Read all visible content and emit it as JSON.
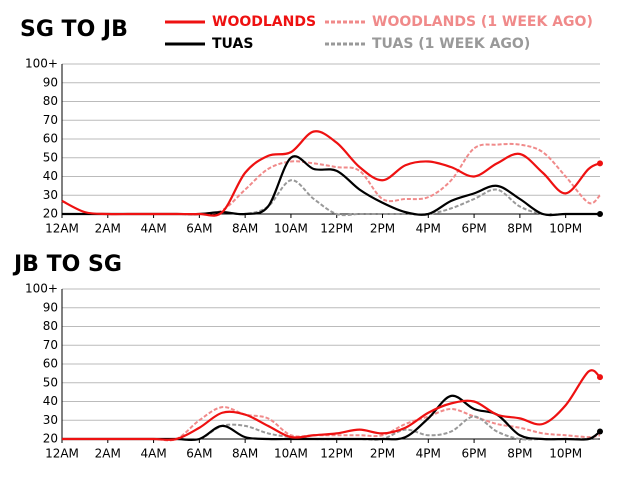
{
  "chart_data": [
    {
      "type": "line",
      "title": "SG TO JB",
      "x": [
        0,
        1,
        2,
        3,
        4,
        5,
        6,
        7,
        8,
        9,
        10,
        11,
        12,
        13,
        14,
        15,
        16,
        17,
        18,
        19,
        20,
        21,
        22,
        23,
        23.5
      ],
      "series": [
        {
          "name": "WOODLANDS",
          "color": "#ee1111",
          "dash": false,
          "values": [
            27,
            21,
            20,
            20,
            20,
            20,
            20,
            21,
            42,
            51,
            53,
            64,
            58,
            45,
            38,
            46,
            48,
            45,
            40,
            47,
            52,
            42,
            31,
            44,
            47
          ]
        },
        {
          "name": "WOODLANDS (1 WEEK AGO)",
          "color": "#f08a8a",
          "dash": true,
          "values": [
            20,
            20,
            20,
            20,
            20,
            20,
            20,
            22,
            33,
            44,
            48,
            47,
            45,
            43,
            28,
            28,
            29,
            38,
            55,
            57,
            57,
            53,
            40,
            26,
            30
          ]
        },
        {
          "name": "TUAS",
          "color": "#000000",
          "dash": false,
          "values": [
            20,
            20,
            20,
            20,
            20,
            20,
            20,
            21,
            20,
            24,
            50,
            44,
            43,
            33,
            26,
            21,
            20,
            27,
            31,
            35,
            28,
            20,
            20,
            20,
            20
          ]
        },
        {
          "name": "TUAS (1 WEEK AGO)",
          "color": "#999999",
          "dash": true,
          "values": [
            20,
            20,
            20,
            20,
            20,
            20,
            20,
            21,
            20,
            24,
            38,
            28,
            20,
            20,
            20,
            20,
            20,
            23,
            28,
            33,
            24,
            20,
            20,
            20,
            20
          ]
        }
      ],
      "xlim": [
        0,
        23.5
      ],
      "ylim": [
        20,
        100
      ],
      "xticks": [
        {
          "value": 0,
          "label": "12AM"
        },
        {
          "value": 2,
          "label": "2AM"
        },
        {
          "value": 4,
          "label": "4AM"
        },
        {
          "value": 6,
          "label": "6AM"
        },
        {
          "value": 8,
          "label": "8AM"
        },
        {
          "value": 10,
          "label": "10AM"
        },
        {
          "value": 12,
          "label": "12PM"
        },
        {
          "value": 14,
          "label": "2PM"
        },
        {
          "value": 16,
          "label": "4PM"
        },
        {
          "value": 18,
          "label": "6PM"
        },
        {
          "value": 20,
          "label": "8PM"
        },
        {
          "value": 22,
          "label": "10PM"
        }
      ],
      "yticks": [
        20,
        30,
        40,
        50,
        60,
        70,
        80,
        90,
        {
          "value": 100,
          "label": "100+"
        }
      ],
      "grid": true
    },
    {
      "type": "line",
      "title": "JB TO SG",
      "x": [
        0,
        1,
        2,
        3,
        4,
        5,
        6,
        7,
        8,
        9,
        10,
        11,
        12,
        13,
        14,
        15,
        16,
        17,
        18,
        19,
        20,
        21,
        22,
        23,
        23.5
      ],
      "series": [
        {
          "name": "WOODLANDS",
          "color": "#ee1111",
          "dash": false,
          "values": [
            20,
            20,
            20,
            20,
            20,
            20,
            26,
            34,
            33,
            27,
            21,
            22,
            23,
            25,
            23,
            26,
            34,
            39,
            40,
            33,
            31,
            28,
            38,
            56,
            53
          ]
        },
        {
          "name": "WOODLANDS (1 WEEK AGO)",
          "color": "#f08a8a",
          "dash": true,
          "values": [
            20,
            20,
            20,
            20,
            20,
            20,
            30,
            37,
            33,
            31,
            22,
            22,
            22,
            22,
            22,
            28,
            32,
            36,
            32,
            28,
            26,
            23,
            22,
            21,
            22
          ]
        },
        {
          "name": "TUAS",
          "color": "#000000",
          "dash": false,
          "values": [
            20,
            20,
            20,
            20,
            20,
            20,
            20,
            27,
            21,
            20,
            20,
            20,
            20,
            20,
            20,
            21,
            31,
            43,
            36,
            33,
            22,
            20,
            20,
            20,
            24
          ]
        },
        {
          "name": "TUAS (1 WEEK AGO)",
          "color": "#999999",
          "dash": true,
          "values": [
            20,
            20,
            20,
            20,
            20,
            20,
            20,
            27,
            27,
            23,
            21,
            20,
            20,
            20,
            20,
            25,
            22,
            24,
            32,
            24,
            20,
            20,
            20,
            20,
            20
          ]
        }
      ],
      "xlim": [
        0,
        23.5
      ],
      "ylim": [
        20,
        100
      ],
      "xticks": [
        {
          "value": 0,
          "label": "12AM"
        },
        {
          "value": 2,
          "label": "2AM"
        },
        {
          "value": 4,
          "label": "4AM"
        },
        {
          "value": 6,
          "label": "6AM"
        },
        {
          "value": 8,
          "label": "8AM"
        },
        {
          "value": 10,
          "label": "10AM"
        },
        {
          "value": 12,
          "label": "12PM"
        },
        {
          "value": 14,
          "label": "2PM"
        },
        {
          "value": 16,
          "label": "4PM"
        },
        {
          "value": 18,
          "label": "6PM"
        },
        {
          "value": 20,
          "label": "8PM"
        },
        {
          "value": 22,
          "label": "10PM"
        }
      ],
      "yticks": [
        20,
        30,
        40,
        50,
        60,
        70,
        80,
        90,
        {
          "value": 100,
          "label": "100+"
        }
      ],
      "grid": true
    }
  ]
}
